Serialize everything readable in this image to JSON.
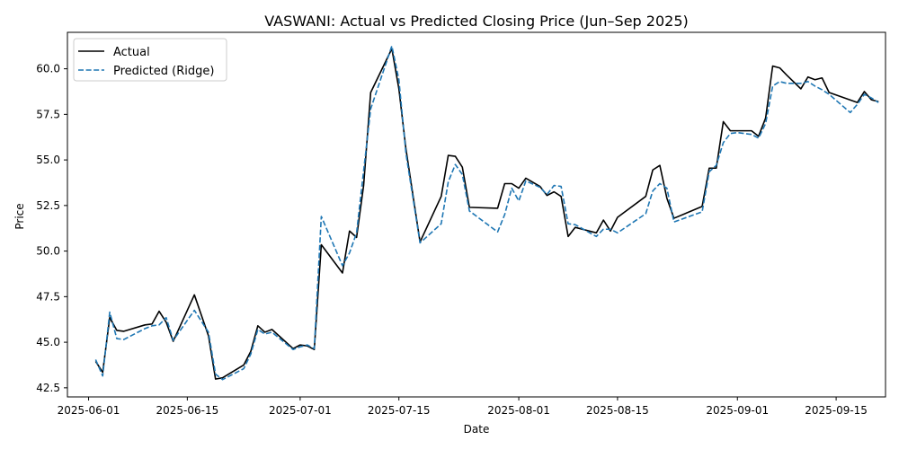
{
  "chart_data": {
    "type": "line",
    "title": "VASWANI: Actual vs Predicted Closing Price (Jun–Sep 2025)",
    "xlabel": "Date",
    "ylabel": "Price",
    "xlim": [
      "2025-05-29",
      "2025-09-22"
    ],
    "ylim": [
      42.0,
      62.0
    ],
    "x_ticks": [
      "2025-06-01",
      "2025-06-15",
      "2025-07-01",
      "2025-07-15",
      "2025-08-01",
      "2025-08-15",
      "2025-09-01",
      "2025-09-15"
    ],
    "y_ticks": [
      42.5,
      45.0,
      47.5,
      50.0,
      52.5,
      55.0,
      57.5,
      60.0
    ],
    "y_tick_labels": [
      "42.5",
      "45.0",
      "47.5",
      "50.0",
      "52.5",
      "55.0",
      "57.5",
      "60.0"
    ],
    "grid": false,
    "legend_position": "top-left",
    "series": [
      {
        "name": "Actual",
        "color": "#000000",
        "dash": "solid",
        "points": [
          [
            "2025-06-02",
            43.95
          ],
          [
            "2025-06-03",
            43.35
          ],
          [
            "2025-06-04",
            46.35
          ],
          [
            "2025-06-05",
            45.65
          ],
          [
            "2025-06-06",
            45.6
          ],
          [
            "2025-06-09",
            45.95
          ],
          [
            "2025-06-10",
            46.0
          ],
          [
            "2025-06-11",
            46.7
          ],
          [
            "2025-06-12",
            46.1
          ],
          [
            "2025-06-13",
            45.05
          ],
          [
            "2025-06-16",
            47.6
          ],
          [
            "2025-06-18",
            45.35
          ],
          [
            "2025-06-19",
            42.98
          ],
          [
            "2025-06-20",
            43.05
          ],
          [
            "2025-06-23",
            43.75
          ],
          [
            "2025-06-24",
            44.5
          ],
          [
            "2025-06-25",
            45.9
          ],
          [
            "2025-06-26",
            45.55
          ],
          [
            "2025-06-27",
            45.7
          ],
          [
            "2025-06-30",
            44.65
          ],
          [
            "2025-07-01",
            44.85
          ],
          [
            "2025-07-02",
            44.8
          ],
          [
            "2025-07-03",
            44.6
          ],
          [
            "2025-07-04",
            50.35
          ],
          [
            "2025-07-07",
            48.8
          ],
          [
            "2025-07-08",
            51.1
          ],
          [
            "2025-07-09",
            50.75
          ],
          [
            "2025-07-10",
            53.6
          ],
          [
            "2025-07-11",
            58.7
          ],
          [
            "2025-07-14",
            61.1
          ],
          [
            "2025-07-15",
            58.9
          ],
          [
            "2025-07-16",
            55.6
          ],
          [
            "2025-07-18",
            50.5
          ],
          [
            "2025-07-21",
            53.0
          ],
          [
            "2025-07-22",
            55.25
          ],
          [
            "2025-07-23",
            55.2
          ],
          [
            "2025-07-24",
            54.6
          ],
          [
            "2025-07-25",
            52.4
          ],
          [
            "2025-07-29",
            52.35
          ],
          [
            "2025-07-30",
            53.7
          ],
          [
            "2025-07-31",
            53.7
          ],
          [
            "2025-08-01",
            53.45
          ],
          [
            "2025-08-02",
            54.0
          ],
          [
            "2025-08-04",
            53.55
          ],
          [
            "2025-08-05",
            53.05
          ],
          [
            "2025-08-06",
            53.25
          ],
          [
            "2025-08-07",
            53.0
          ],
          [
            "2025-08-08",
            50.8
          ],
          [
            "2025-08-09",
            51.3
          ],
          [
            "2025-08-12",
            51.0
          ],
          [
            "2025-08-13",
            51.7
          ],
          [
            "2025-08-14",
            51.1
          ],
          [
            "2025-08-15",
            51.85
          ],
          [
            "2025-08-19",
            53.0
          ],
          [
            "2025-08-20",
            54.45
          ],
          [
            "2025-08-21",
            54.7
          ],
          [
            "2025-08-22",
            52.9
          ],
          [
            "2025-08-23",
            51.8
          ],
          [
            "2025-08-27",
            52.45
          ],
          [
            "2025-08-28",
            54.55
          ],
          [
            "2025-08-29",
            54.55
          ],
          [
            "2025-08-30",
            57.1
          ],
          [
            "2025-08-31",
            56.6
          ],
          [
            "2025-09-01",
            56.6
          ],
          [
            "2025-09-03",
            56.6
          ],
          [
            "2025-09-04",
            56.3
          ],
          [
            "2025-09-05",
            57.3
          ],
          [
            "2025-09-06",
            60.15
          ],
          [
            "2025-09-07",
            60.05
          ],
          [
            "2025-09-08",
            59.65
          ],
          [
            "2025-09-10",
            58.9
          ],
          [
            "2025-09-11",
            59.55
          ],
          [
            "2025-09-12",
            59.4
          ],
          [
            "2025-09-13",
            59.5
          ],
          [
            "2025-09-14",
            58.7
          ],
          [
            "2025-09-18",
            58.15
          ],
          [
            "2025-09-19",
            58.75
          ],
          [
            "2025-09-20",
            58.3
          ],
          [
            "2025-09-21",
            58.2
          ]
        ]
      },
      {
        "name": "Predicted (Ridge)",
        "color": "#1f77b4",
        "dash": "dashed",
        "points": [
          [
            "2025-06-02",
            44.05
          ],
          [
            "2025-06-03",
            43.15
          ],
          [
            "2025-06-04",
            46.65
          ],
          [
            "2025-06-05",
            45.2
          ],
          [
            "2025-06-06",
            45.15
          ],
          [
            "2025-06-09",
            45.75
          ],
          [
            "2025-06-10",
            45.9
          ],
          [
            "2025-06-11",
            45.95
          ],
          [
            "2025-06-12",
            46.35
          ],
          [
            "2025-06-13",
            45.1
          ],
          [
            "2025-06-16",
            46.75
          ],
          [
            "2025-06-18",
            45.55
          ],
          [
            "2025-06-19",
            43.25
          ],
          [
            "2025-06-20",
            42.95
          ],
          [
            "2025-06-23",
            43.55
          ],
          [
            "2025-06-24",
            44.35
          ],
          [
            "2025-06-25",
            45.7
          ],
          [
            "2025-06-26",
            45.45
          ],
          [
            "2025-06-27",
            45.55
          ],
          [
            "2025-06-30",
            44.6
          ],
          [
            "2025-07-01",
            44.75
          ],
          [
            "2025-07-02",
            44.85
          ],
          [
            "2025-07-03",
            44.65
          ],
          [
            "2025-07-04",
            51.9
          ],
          [
            "2025-07-07",
            49.2
          ],
          [
            "2025-07-08",
            49.9
          ],
          [
            "2025-07-09",
            51.0
          ],
          [
            "2025-07-10",
            54.4
          ],
          [
            "2025-07-11",
            57.8
          ],
          [
            "2025-07-14",
            61.25
          ],
          [
            "2025-07-15",
            59.4
          ],
          [
            "2025-07-16",
            55.35
          ],
          [
            "2025-07-18",
            50.45
          ],
          [
            "2025-07-21",
            51.5
          ],
          [
            "2025-07-22",
            53.8
          ],
          [
            "2025-07-23",
            54.75
          ],
          [
            "2025-07-24",
            54.2
          ],
          [
            "2025-07-25",
            52.2
          ],
          [
            "2025-07-29",
            51.05
          ],
          [
            "2025-07-30",
            52.0
          ],
          [
            "2025-07-31",
            53.45
          ],
          [
            "2025-08-01",
            52.75
          ],
          [
            "2025-08-02",
            53.85
          ],
          [
            "2025-08-04",
            53.5
          ],
          [
            "2025-08-05",
            53.1
          ],
          [
            "2025-08-06",
            53.6
          ],
          [
            "2025-08-07",
            53.55
          ],
          [
            "2025-08-08",
            51.5
          ],
          [
            "2025-08-09",
            51.45
          ],
          [
            "2025-08-12",
            50.8
          ],
          [
            "2025-08-13",
            51.2
          ],
          [
            "2025-08-14",
            51.2
          ],
          [
            "2025-08-15",
            51.0
          ],
          [
            "2025-08-19",
            52.05
          ],
          [
            "2025-08-20",
            53.3
          ],
          [
            "2025-08-21",
            53.7
          ],
          [
            "2025-08-22",
            53.45
          ],
          [
            "2025-08-23",
            51.6
          ],
          [
            "2025-08-27",
            52.15
          ],
          [
            "2025-08-28",
            54.35
          ],
          [
            "2025-08-29",
            54.7
          ],
          [
            "2025-08-30",
            55.95
          ],
          [
            "2025-08-31",
            56.45
          ],
          [
            "2025-09-01",
            56.5
          ],
          [
            "2025-09-03",
            56.4
          ],
          [
            "2025-09-04",
            56.2
          ],
          [
            "2025-09-05",
            57.0
          ],
          [
            "2025-09-06",
            59.05
          ],
          [
            "2025-09-07",
            59.3
          ],
          [
            "2025-09-08",
            59.2
          ],
          [
            "2025-09-10",
            59.2
          ],
          [
            "2025-09-11",
            59.3
          ],
          [
            "2025-09-12",
            59.05
          ],
          [
            "2025-09-13",
            58.85
          ],
          [
            "2025-09-14",
            58.6
          ],
          [
            "2025-09-17",
            57.6
          ],
          [
            "2025-09-18",
            58.05
          ],
          [
            "2025-09-19",
            58.6
          ],
          [
            "2025-09-20",
            58.4
          ],
          [
            "2025-09-21",
            58.15
          ]
        ]
      }
    ]
  }
}
